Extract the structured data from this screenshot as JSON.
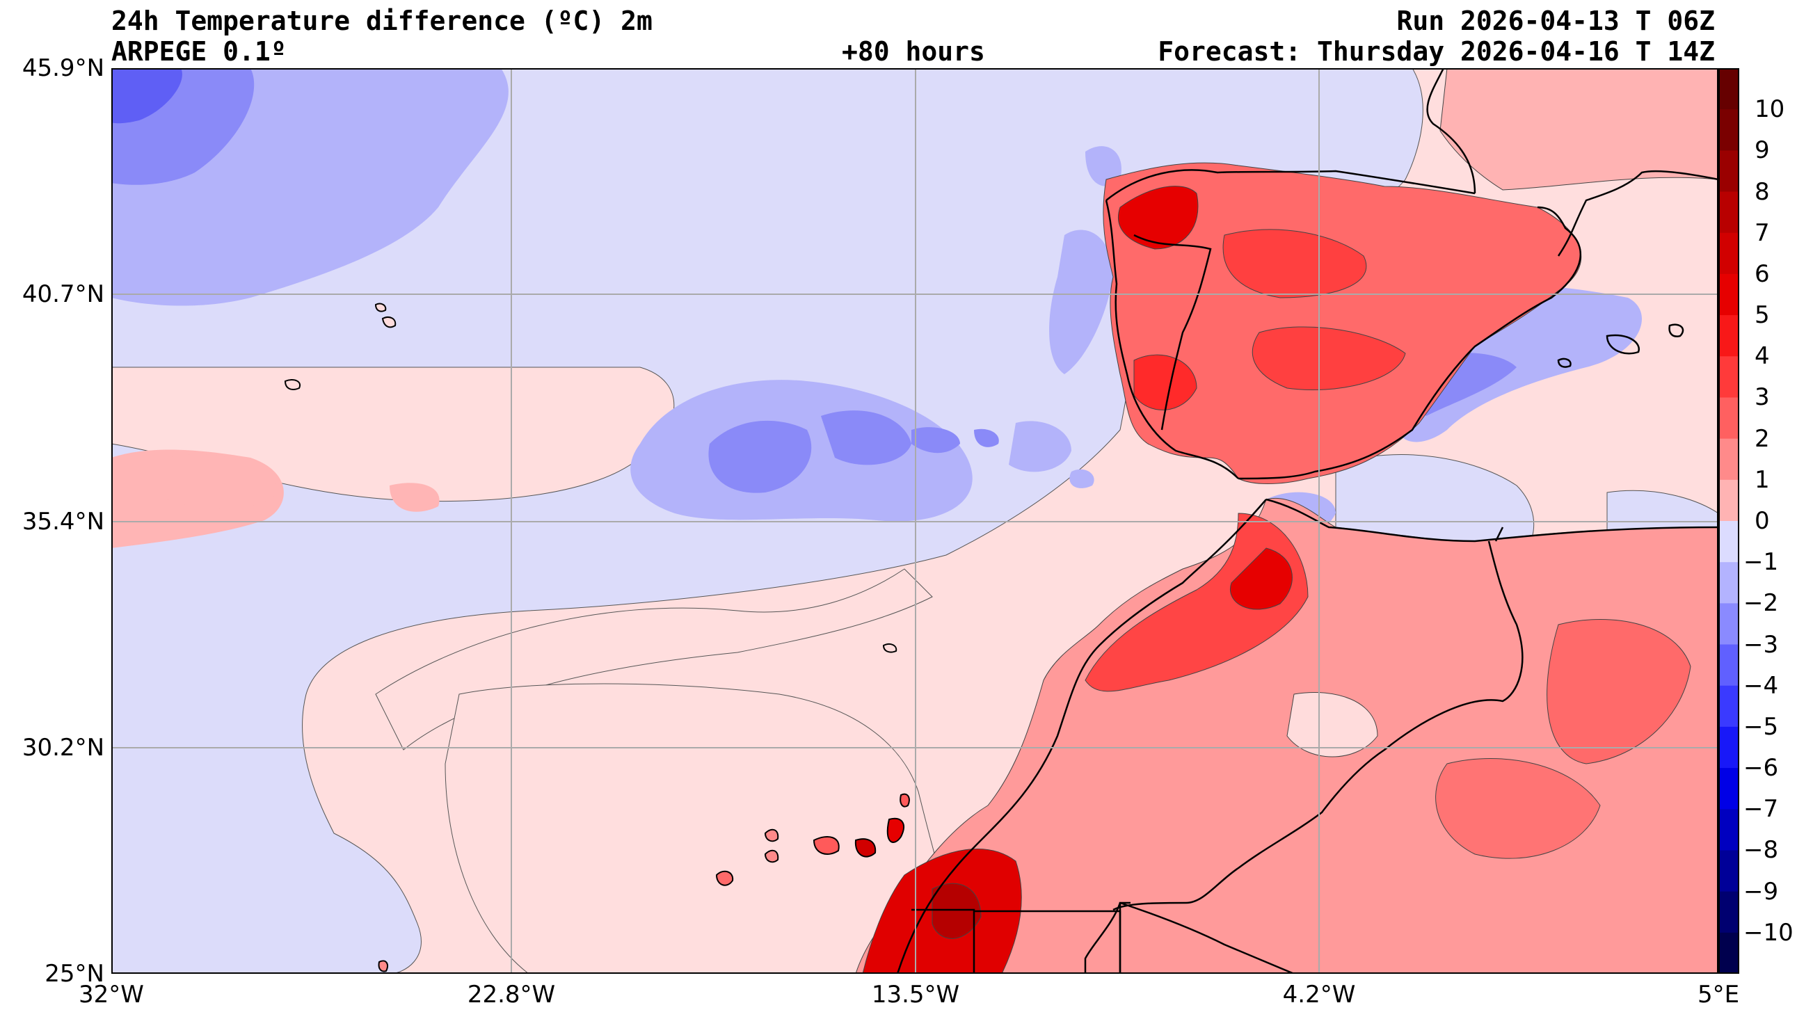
{
  "header": {
    "title": "24h Temperature difference (ºC) 2m",
    "model": "ARPEGE 0.1º",
    "lead": "+80 hours",
    "run": "Run 2026-04-13 T 06Z",
    "forecast": "Forecast: Thursday 2026-04-16 T 14Z"
  },
  "axes": {
    "y_ticks": [
      "45.9°N",
      "40.7°N",
      "35.4°N",
      "30.2°N",
      "25°N"
    ],
    "x_ticks": [
      "32°W",
      "22.8°W",
      "13.5°W",
      "4.2°W",
      "5°E"
    ],
    "lat_range": [
      25,
      45.9
    ],
    "lon_range": [
      -32,
      5
    ],
    "grid": true
  },
  "colorbar": {
    "levels": [
      10,
      9,
      8,
      7,
      6,
      5,
      4,
      3,
      2,
      1,
      0,
      -1,
      -2,
      -3,
      -4,
      -5,
      -6,
      -7,
      -8,
      -9,
      -10
    ],
    "labels": [
      "10",
      "9",
      "8",
      "7",
      "6",
      "5",
      "4",
      "3",
      "2",
      "1",
      "0",
      "−1",
      "−2",
      "−3",
      "−4",
      "−5",
      "−6",
      "−7",
      "−8",
      "−9",
      "−10"
    ],
    "colors": [
      "#7a0000",
      "#9a0000",
      "#b80000",
      "#d10000",
      "#e60000",
      "#f81818",
      "#ff3a3a",
      "#ff6060",
      "#ff8a8a",
      "#ffb3b3",
      "#ffdcdc",
      "#dcdcff",
      "#b3b3ff",
      "#8a8aff",
      "#6060ff",
      "#3a3aff",
      "#1818f8",
      "#0000e6",
      "#0000c0",
      "#000098",
      "#000070"
    ],
    "top_color": "#660000",
    "bottom_color": "#00004e"
  },
  "map": {
    "ocean_base_color": "#ffdede",
    "cool_color": "#dcdcfa"
  }
}
